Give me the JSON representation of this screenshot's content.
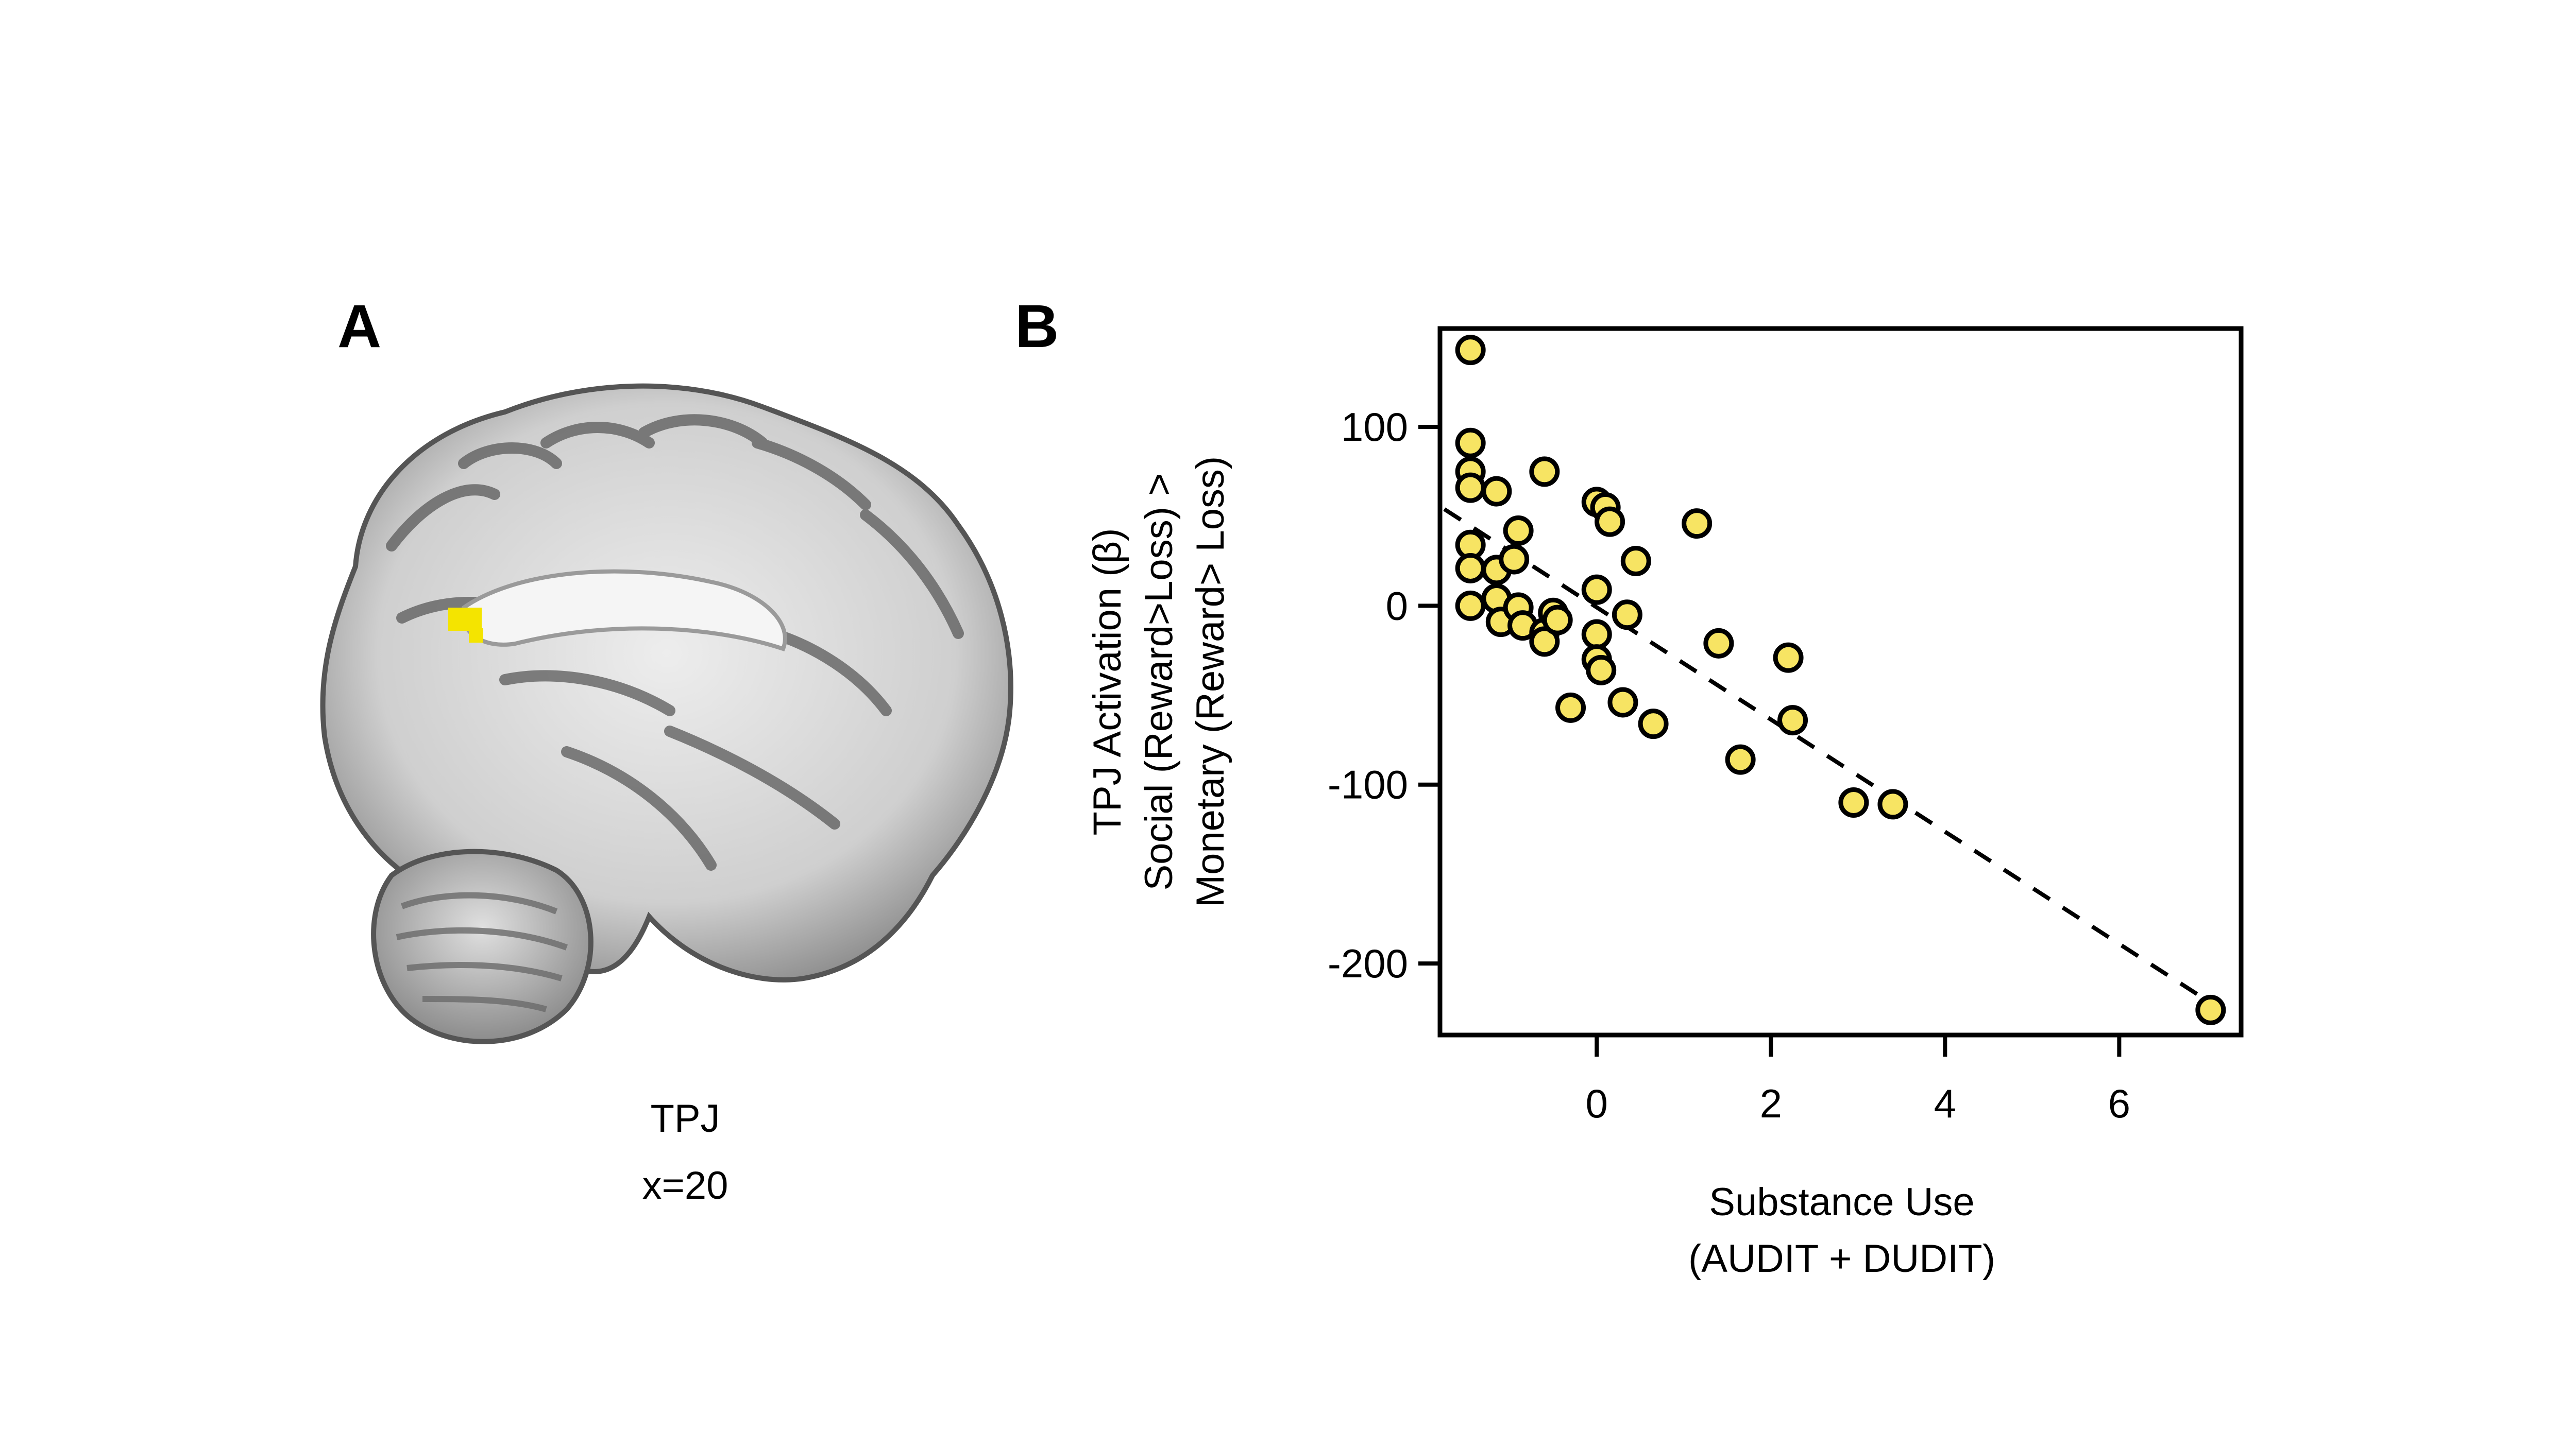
{
  "panels": {
    "a_label": "A",
    "b_label": "B"
  },
  "brain": {
    "region_label": "TPJ",
    "coordinate_label": "x=20",
    "highlight_color": "#f4e400"
  },
  "chart_data": {
    "type": "scatter",
    "title": "",
    "xlabel": [
      "Substance Use",
      "(AUDIT + DUDIT)"
    ],
    "ylabel": [
      "TPJ Activation (β)",
      "Social (Reward>Loss) >",
      "Monetary (Reward> Loss)"
    ],
    "xlim": [
      -1.8,
      7.4
    ],
    "ylim": [
      -240,
      155
    ],
    "x_ticks": [
      0,
      2,
      4,
      6
    ],
    "y_ticks": [
      100,
      0,
      -100,
      -200
    ],
    "marker_fill": "#f7e463",
    "marker_edge": "#000000",
    "grid": false,
    "legend": "none",
    "points": [
      {
        "x": -1.45,
        "y": 143
      },
      {
        "x": -1.45,
        "y": 91
      },
      {
        "x": -1.45,
        "y": 75
      },
      {
        "x": -1.45,
        "y": 66
      },
      {
        "x": -1.45,
        "y": 34
      },
      {
        "x": -1.45,
        "y": 21
      },
      {
        "x": -1.45,
        "y": 0
      },
      {
        "x": -1.15,
        "y": 64
      },
      {
        "x": -1.15,
        "y": 20
      },
      {
        "x": -1.15,
        "y": 4
      },
      {
        "x": -1.1,
        "y": -9
      },
      {
        "x": -0.95,
        "y": 26
      },
      {
        "x": -0.9,
        "y": 42
      },
      {
        "x": -0.9,
        "y": -1
      },
      {
        "x": -0.85,
        "y": -11
      },
      {
        "x": -0.6,
        "y": 75
      },
      {
        "x": -0.6,
        "y": -15
      },
      {
        "x": -0.6,
        "y": -20
      },
      {
        "x": -0.5,
        "y": -4
      },
      {
        "x": -0.45,
        "y": -8
      },
      {
        "x": -0.3,
        "y": -57
      },
      {
        "x": 0.0,
        "y": 58
      },
      {
        "x": 0.0,
        "y": 9
      },
      {
        "x": 0.0,
        "y": -16
      },
      {
        "x": 0.0,
        "y": -30
      },
      {
        "x": 0.05,
        "y": -36
      },
      {
        "x": 0.1,
        "y": 55
      },
      {
        "x": 0.15,
        "y": 47
      },
      {
        "x": 0.3,
        "y": -54
      },
      {
        "x": 0.35,
        "y": -5
      },
      {
        "x": 0.45,
        "y": 25
      },
      {
        "x": 0.65,
        "y": -66
      },
      {
        "x": 1.15,
        "y": 46
      },
      {
        "x": 1.4,
        "y": -21
      },
      {
        "x": 1.65,
        "y": -86
      },
      {
        "x": 2.2,
        "y": -29
      },
      {
        "x": 2.25,
        "y": -64
      },
      {
        "x": 2.95,
        "y": -110
      },
      {
        "x": 3.4,
        "y": -111
      },
      {
        "x": 7.05,
        "y": -226
      }
    ],
    "fit_line": {
      "x": [
        -1.75,
        7.05
      ],
      "y": [
        54,
        -222
      ],
      "style": "dashed"
    }
  }
}
